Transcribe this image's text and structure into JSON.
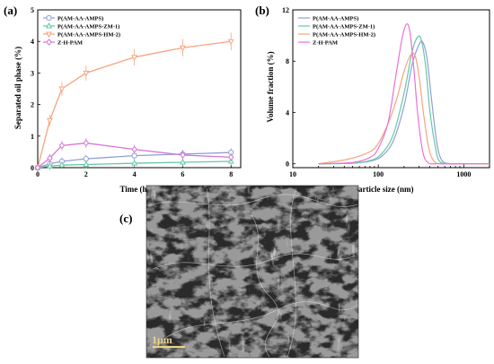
{
  "chart_data": [
    {
      "type": "line",
      "panel_label": "(a)",
      "xlabel": "Time (h)",
      "ylabel": "Separated oil phase (%)",
      "xlim": [
        0,
        8.4
      ],
      "ylim": [
        0,
        5
      ],
      "xticks": [
        0,
        2,
        4,
        6,
        8
      ],
      "yticks": [
        0,
        1,
        2,
        3,
        4,
        5
      ],
      "legend": "top-left",
      "grid": false,
      "series": [
        {
          "name": "P(AM-AA-AMPS)",
          "color": "#8e9fd6",
          "marker": "circle",
          "x": [
            0,
            0.5,
            1,
            2,
            4,
            6,
            8
          ],
          "y": [
            0,
            0.12,
            0.2,
            0.28,
            0.38,
            0.43,
            0.48
          ]
        },
        {
          "name": "P(AM-AA-AMPS-ZM-1)",
          "color": "#67c7a3",
          "marker": "triangle",
          "x": [
            0,
            0.5,
            1,
            2,
            4,
            6,
            8
          ],
          "y": [
            0,
            0.05,
            0.08,
            0.1,
            0.14,
            0.17,
            0.2
          ]
        },
        {
          "name": "P(AM-AA-AMPS-HM-2)",
          "color": "#f7a37e",
          "marker": "triangle-down",
          "x": [
            0,
            0.5,
            1,
            2,
            4,
            6,
            8
          ],
          "y": [
            0,
            1.5,
            2.5,
            3.0,
            3.5,
            3.8,
            4.0
          ]
        },
        {
          "name": "Z-H-PAM",
          "color": "#d774d2",
          "marker": "diamond",
          "x": [
            0,
            0.5,
            1,
            2,
            4,
            6,
            8
          ],
          "y": [
            0,
            0.3,
            0.7,
            0.78,
            0.58,
            0.4,
            0.33
          ]
        }
      ]
    },
    {
      "type": "line",
      "panel_label": "(b)",
      "xlabel": "Particle size (nm)",
      "ylabel": "Volume fraction (%)",
      "xscale": "log",
      "xlim": [
        10,
        2000
      ],
      "ylim": [
        -0.3,
        12
      ],
      "xtick_labels": [
        "10",
        "100",
        "1000"
      ],
      "yticks": [
        0,
        4,
        8,
        12
      ],
      "legend": "top-left",
      "grid": false,
      "series": [
        {
          "name": "P(AM-AA-AMPS)",
          "color": "#8e9fd6",
          "x": [
            20,
            50,
            80,
            110,
            150,
            200,
            250,
            300,
            330,
            370,
            420,
            480,
            550,
            700,
            1000,
            2000
          ],
          "y": [
            0,
            0.05,
            0.2,
            0.6,
            1.8,
            4.5,
            7.8,
            9.3,
            9.5,
            8.3,
            5.0,
            1.8,
            0.3,
            0,
            0,
            0
          ]
        },
        {
          "name": "P(AM-AA-AMPS-ZM-1)",
          "color": "#67c7a3",
          "x": [
            20,
            50,
            80,
            110,
            150,
            200,
            250,
            290,
            320,
            360,
            400,
            460,
            520,
            700,
            1000,
            2000
          ],
          "y": [
            0,
            0.05,
            0.25,
            0.8,
            2.3,
            5.5,
            8.8,
            9.9,
            9.6,
            7.5,
            4.2,
            1.5,
            0.2,
            0,
            0,
            0
          ]
        },
        {
          "name": "P(AM-AA-AMPS-HM-2)",
          "color": "#f7a37e",
          "x": [
            20,
            40,
            60,
            90,
            120,
            160,
            200,
            240,
            270,
            300,
            340,
            390,
            450,
            550,
            1000,
            2000
          ],
          "y": [
            0,
            0.3,
            0.6,
            1.2,
            2.6,
            4.8,
            7.2,
            8.5,
            8.4,
            6.8,
            3.8,
            1.2,
            0.2,
            0,
            0,
            0
          ]
        },
        {
          "name": "Z-H-PAM",
          "color": "#ea72d6",
          "x": [
            20,
            50,
            80,
            100,
            130,
            160,
            190,
            215,
            235,
            260,
            290,
            330,
            380,
            500,
            1000,
            2000
          ],
          "y": [
            0,
            0.1,
            0.5,
            1.2,
            3.2,
            6.8,
            9.8,
            10.9,
            10.2,
            7.5,
            3.8,
            1.0,
            0.1,
            0,
            0,
            0
          ]
        }
      ]
    }
  ],
  "sem_panel": {
    "panel_label": "(c)",
    "scale_bar_label": "1μm"
  }
}
